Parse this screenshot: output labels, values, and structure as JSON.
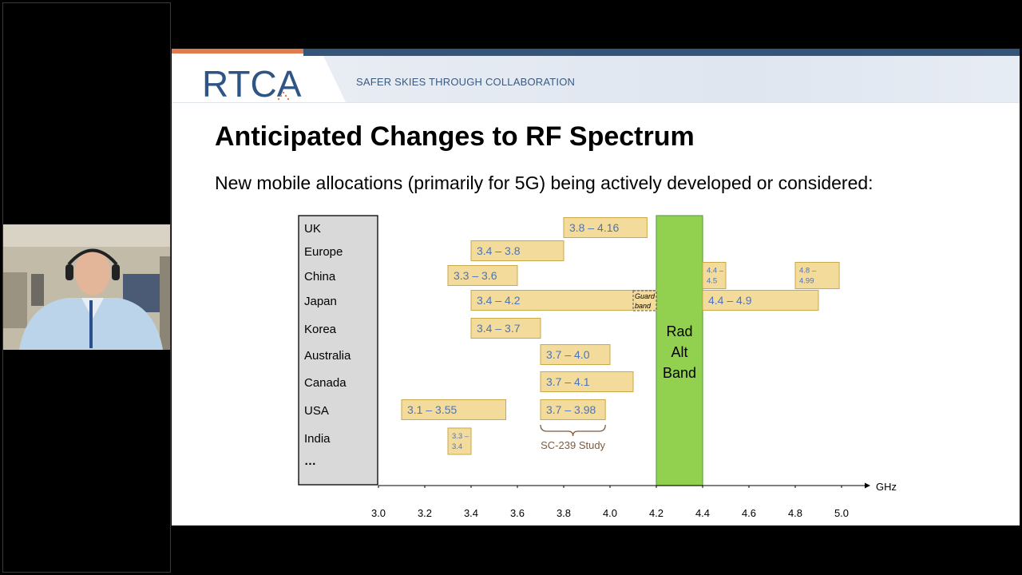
{
  "slide": {
    "logo": "RTCA",
    "tagline": "SAFER SKIES THROUGH COLLABORATION",
    "title": "Anticipated Changes to RF Spectrum",
    "subtitle": "New mobile allocations (primarily for 5G) being actively developed or considered:"
  },
  "chart_data": {
    "type": "bar",
    "countries": [
      "UK",
      "Europe",
      "China",
      "Japan",
      "Korea",
      "Australia",
      "Canada",
      "USA",
      "India",
      "…"
    ],
    "x_label": "GHz",
    "xlim": [
      3.0,
      5.0
    ],
    "x_ticks": [
      "3.0",
      "3.2",
      "3.4",
      "3.6",
      "3.8",
      "4.0",
      "4.2",
      "4.4",
      "4.6",
      "4.8",
      "5.0"
    ],
    "allocations": [
      {
        "country": "UK",
        "start": 3.8,
        "end": 4.16,
        "label": "3.8 – 4.16"
      },
      {
        "country": "Europe",
        "start": 3.4,
        "end": 3.8,
        "label": "3.4 – 3.8"
      },
      {
        "country": "China",
        "start": 3.3,
        "end": 3.6,
        "label": "3.3 – 3.6"
      },
      {
        "country": "China",
        "start": 4.4,
        "end": 4.5,
        "label": "4.4 – 4.5",
        "small": true
      },
      {
        "country": "China",
        "start": 4.8,
        "end": 4.99,
        "label": "4.8 – 4.99",
        "small": true
      },
      {
        "country": "Japan",
        "start": 3.4,
        "end": 4.2,
        "label": "3.4 – 4.2"
      },
      {
        "country": "Japan",
        "start": 4.4,
        "end": 4.9,
        "label": "4.4 – 4.9"
      },
      {
        "country": "Korea",
        "start": 3.4,
        "end": 3.7,
        "label": "3.4 – 3.7"
      },
      {
        "country": "Australia",
        "start": 3.7,
        "end": 4.0,
        "label": "3.7 – 4.0"
      },
      {
        "country": "Canada",
        "start": 3.7,
        "end": 4.1,
        "label": "3.7 – 4.1"
      },
      {
        "country": "USA",
        "start": 3.1,
        "end": 3.55,
        "label": "3.1 – 3.55"
      },
      {
        "country": "USA",
        "start": 3.7,
        "end": 3.98,
        "label": "3.7 – 3.98"
      },
      {
        "country": "India",
        "start": 3.3,
        "end": 3.4,
        "label": "3.3 – 3.4",
        "small": true
      }
    ],
    "guard_band": {
      "country": "Japan",
      "start": 4.1,
      "end": 4.2,
      "label": "Guard band"
    },
    "highlight_band": {
      "start": 4.2,
      "end": 4.4,
      "label": "Rad Alt Band",
      "color": "#92d050"
    },
    "study_bracket": {
      "start": 3.7,
      "end": 3.98,
      "label": "SC-239 Study"
    },
    "colors": {
      "bar_fill": "#f3dc9b",
      "bar_stroke": "#c9a94a",
      "bar_text": "#4f73b6",
      "country_panel": "#d9d9d9",
      "bracket": "#7f5a3c"
    }
  }
}
